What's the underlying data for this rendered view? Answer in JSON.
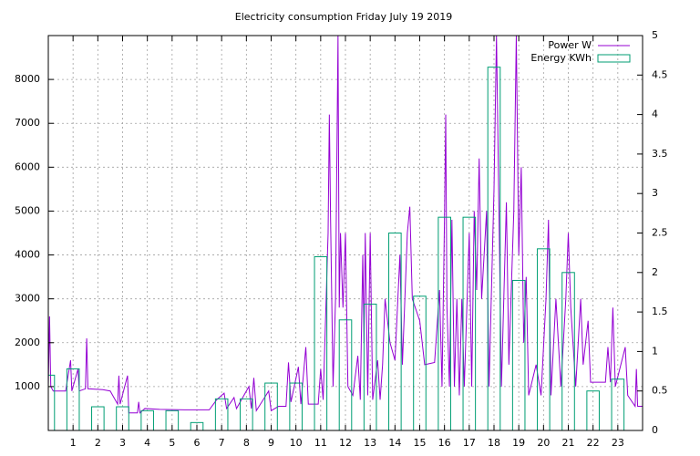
{
  "chart_data": {
    "type": "line",
    "title": "Electricity consumption Friday July 19 2019",
    "xlim": [
      0,
      24
    ],
    "xticks": [
      1,
      2,
      3,
      4,
      5,
      6,
      7,
      8,
      9,
      10,
      11,
      12,
      13,
      14,
      15,
      16,
      17,
      18,
      19,
      20,
      21,
      22,
      23
    ],
    "ylim": [
      0,
      9000
    ],
    "yticks": [
      1000,
      2000,
      3000,
      4000,
      5000,
      6000,
      7000,
      8000
    ],
    "y2lim": [
      0,
      5
    ],
    "y2ticks": [
      0,
      0.5,
      1,
      1.5,
      2,
      2.5,
      3,
      3.5,
      4,
      4.5,
      5
    ],
    "grid": true,
    "legend": "top-right",
    "series": [
      {
        "name": "Power W",
        "color": "#9400d3",
        "x": [
          0,
          0.05,
          0.1,
          0.2,
          0.7,
          0.9,
          0.95,
          1.2,
          1.25,
          1.5,
          1.55,
          1.6,
          2.2,
          2.5,
          2.8,
          2.85,
          2.9,
          3.2,
          3.25,
          3.6,
          3.65,
          3.7,
          3.9,
          4.5,
          5.5,
          6.5,
          6.8,
          7.1,
          7.2,
          7.5,
          7.6,
          8.1,
          8.2,
          8.3,
          8.4,
          8.9,
          9,
          9.3,
          9.6,
          9.7,
          9.8,
          10.1,
          10.2,
          10.4,
          10.5,
          10.9,
          11,
          11.1,
          11.3,
          11.35,
          11.4,
          11.5,
          11.6,
          11.7,
          11.75,
          11.8,
          11.9,
          12,
          12.1,
          12.3,
          12.5,
          12.6,
          12.7,
          12.75,
          12.8,
          12.9,
          13,
          13.1,
          13.3,
          13.4,
          13.5,
          13.6,
          13.8,
          14,
          14.2,
          14.3,
          14.5,
          14.6,
          14.7,
          15,
          15.2,
          15.6,
          15.8,
          15.9,
          16,
          16.05,
          16.1,
          16.2,
          16.3,
          16.4,
          16.5,
          16.6,
          16.7,
          16.8,
          17,
          17.1,
          17.2,
          17.3,
          17.4,
          17.5,
          17.7,
          17.8,
          18,
          18.1,
          18.2,
          18.3,
          18.5,
          18.6,
          18.8,
          18.9,
          19,
          19.1,
          19.2,
          19.3,
          19.4,
          19.7,
          19.9,
          20.1,
          20.2,
          20.3,
          20.5,
          20.7,
          20.9,
          21,
          21.1,
          21.3,
          21.5,
          21.6,
          21.8,
          21.9,
          22.5,
          22.6,
          22.7,
          22.8,
          22.9,
          23.3,
          23.4,
          23.7,
          23.75,
          23.8,
          24
        ],
        "values": [
          1000,
          2600,
          1000,
          900,
          900,
          1600,
          900,
          1400,
          900,
          950,
          2100,
          950,
          930,
          900,
          600,
          1250,
          600,
          1250,
          400,
          400,
          650,
          400,
          500,
          480,
          470,
          470,
          700,
          850,
          500,
          750,
          500,
          1000,
          500,
          1200,
          450,
          900,
          450,
          550,
          550,
          1550,
          650,
          1450,
          600,
          1900,
          600,
          600,
          1400,
          700,
          4500,
          7200,
          4800,
          1000,
          3000,
          9000,
          2800,
          4500,
          2800,
          4500,
          1000,
          800,
          1700,
          700,
          4000,
          2000,
          4500,
          800,
          4500,
          700,
          1600,
          700,
          1500,
          3000,
          2000,
          1600,
          4000,
          1500,
          4500,
          5100,
          3000,
          2500,
          1500,
          1550,
          3200,
          1000,
          4800,
          7200,
          2800,
          1000,
          4800,
          1000,
          3000,
          800,
          3000,
          1000,
          4500,
          1000,
          5000,
          3200,
          6200,
          3000,
          5000,
          1000,
          5500,
          9000,
          5000,
          1000,
          5200,
          1500,
          5000,
          9000,
          4000,
          6000,
          2000,
          3500,
          800,
          1500,
          800,
          3000,
          4800,
          800,
          3000,
          1000,
          3000,
          4500,
          2800,
          1000,
          3000,
          1500,
          2500,
          1100,
          1100,
          1900,
          1100,
          2800,
          1000,
          1900,
          800,
          550,
          1400,
          550,
          550
        ]
      },
      {
        "name": "Energy KWh",
        "color": "#009e73",
        "axis": "y2",
        "type": "bar",
        "x": [
          0,
          1,
          2,
          3,
          4,
          5,
          6,
          7,
          8,
          9,
          10,
          11,
          12,
          13,
          14,
          15,
          16,
          17,
          18,
          19,
          20,
          21,
          22,
          23
        ],
        "values": [
          0.7,
          0.78,
          0.3,
          0.3,
          0.25,
          0.25,
          0.1,
          0.4,
          0.4,
          0.6,
          0.6,
          2.2,
          1.4,
          1.6,
          2.5,
          1.7,
          2.7,
          2.7,
          4.6,
          1.9,
          2.3,
          2.0,
          0.5,
          0.65
        ]
      }
    ]
  }
}
